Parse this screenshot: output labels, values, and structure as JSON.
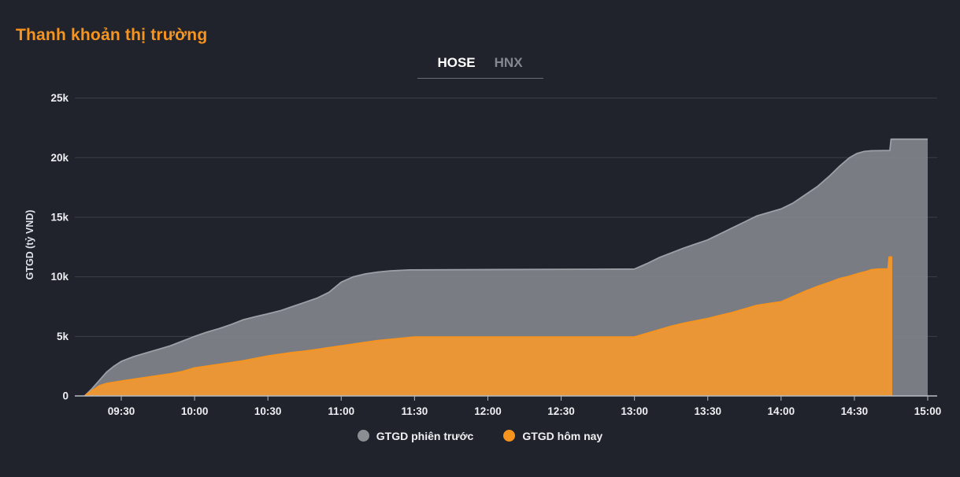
{
  "header": {
    "title": "Thanh khoản thị trường"
  },
  "tabs": [
    {
      "label": "HOSE",
      "active": true
    },
    {
      "label": "HNX",
      "active": false
    }
  ],
  "colors": {
    "accent": "#f7941d",
    "background": "#20232c",
    "previous_session": "#8b8f94",
    "today": "#f7941e"
  },
  "chart_data": {
    "type": "area",
    "title": "Thanh khoản thị trường",
    "xlabel": "",
    "ylabel": "GTGD (tỷ VND)",
    "y_unit": "tỷ VND",
    "x_unit": "minutes from midnight",
    "grid": true,
    "legend_position": "bottom",
    "xlim": [
      553,
      902
    ],
    "ylim": [
      0,
      25000
    ],
    "yticks": [
      {
        "v": 0,
        "label": "0"
      },
      {
        "v": 5000,
        "label": "5k"
      },
      {
        "v": 10000,
        "label": "10k"
      },
      {
        "v": 15000,
        "label": "15k"
      },
      {
        "v": 20000,
        "label": "20k"
      },
      {
        "v": 25000,
        "label": "25k"
      }
    ],
    "xticks": [
      {
        "t": 570,
        "label": "09:30"
      },
      {
        "t": 600,
        "label": "10:00"
      },
      {
        "t": 630,
        "label": "10:30"
      },
      {
        "t": 660,
        "label": "11:00"
      },
      {
        "t": 690,
        "label": "11:30"
      },
      {
        "t": 720,
        "label": "12:00"
      },
      {
        "t": 750,
        "label": "12:30"
      },
      {
        "t": 780,
        "label": "13:00"
      },
      {
        "t": 810,
        "label": "13:30"
      },
      {
        "t": 840,
        "label": "14:00"
      },
      {
        "t": 870,
        "label": "14:30"
      },
      {
        "t": 900,
        "label": "15:00"
      }
    ],
    "series": [
      {
        "name": "GTGD phiên trước",
        "id": "gtgd-phien-truoc",
        "dot_color": "#8b8f94",
        "fill": "rgba(134,137,143,0.88)",
        "stroke": "#9ba0a7",
        "points": [
          [
            555,
            0
          ],
          [
            558,
            600
          ],
          [
            561,
            1300
          ],
          [
            564,
            2000
          ],
          [
            567,
            2500
          ],
          [
            570,
            2900
          ],
          [
            575,
            3300
          ],
          [
            580,
            3600
          ],
          [
            585,
            3900
          ],
          [
            590,
            4200
          ],
          [
            595,
            4600
          ],
          [
            600,
            5000
          ],
          [
            605,
            5350
          ],
          [
            610,
            5650
          ],
          [
            615,
            6000
          ],
          [
            620,
            6400
          ],
          [
            625,
            6650
          ],
          [
            630,
            6900
          ],
          [
            635,
            7150
          ],
          [
            640,
            7500
          ],
          [
            645,
            7850
          ],
          [
            650,
            8200
          ],
          [
            655,
            8700
          ],
          [
            660,
            9550
          ],
          [
            665,
            10000
          ],
          [
            670,
            10250
          ],
          [
            675,
            10400
          ],
          [
            680,
            10500
          ],
          [
            688,
            10580
          ],
          [
            780,
            10650
          ],
          [
            785,
            11100
          ],
          [
            790,
            11600
          ],
          [
            795,
            12000
          ],
          [
            800,
            12400
          ],
          [
            805,
            12750
          ],
          [
            810,
            13100
          ],
          [
            815,
            13600
          ],
          [
            820,
            14100
          ],
          [
            825,
            14600
          ],
          [
            830,
            15100
          ],
          [
            835,
            15400
          ],
          [
            840,
            15700
          ],
          [
            845,
            16200
          ],
          [
            850,
            16900
          ],
          [
            855,
            17600
          ],
          [
            860,
            18500
          ],
          [
            864,
            19300
          ],
          [
            868,
            20000
          ],
          [
            871,
            20350
          ],
          [
            874,
            20520
          ],
          [
            877,
            20580
          ],
          [
            884.5,
            20600
          ],
          [
            885,
            21550
          ],
          [
            900,
            21550
          ]
        ]
      },
      {
        "name": "GTGD hôm nay",
        "id": "gtgd-hom-nay",
        "dot_color": "#f7941e",
        "fill": "rgba(242,152,49,0.93)",
        "stroke": "#f7941e",
        "points": [
          [
            555,
            0
          ],
          [
            558,
            450
          ],
          [
            561,
            850
          ],
          [
            564,
            1050
          ],
          [
            567,
            1150
          ],
          [
            570,
            1250
          ],
          [
            575,
            1400
          ],
          [
            580,
            1550
          ],
          [
            585,
            1700
          ],
          [
            590,
            1850
          ],
          [
            595,
            2050
          ],
          [
            600,
            2350
          ],
          [
            605,
            2500
          ],
          [
            610,
            2650
          ],
          [
            615,
            2800
          ],
          [
            620,
            2950
          ],
          [
            625,
            3150
          ],
          [
            630,
            3350
          ],
          [
            635,
            3500
          ],
          [
            640,
            3650
          ],
          [
            645,
            3750
          ],
          [
            650,
            3900
          ],
          [
            655,
            4050
          ],
          [
            660,
            4200
          ],
          [
            665,
            4350
          ],
          [
            670,
            4500
          ],
          [
            675,
            4650
          ],
          [
            680,
            4750
          ],
          [
            685,
            4850
          ],
          [
            690,
            4950
          ],
          [
            780,
            4950
          ],
          [
            785,
            5250
          ],
          [
            790,
            5550
          ],
          [
            795,
            5850
          ],
          [
            800,
            6100
          ],
          [
            805,
            6300
          ],
          [
            810,
            6500
          ],
          [
            815,
            6750
          ],
          [
            820,
            7000
          ],
          [
            825,
            7300
          ],
          [
            830,
            7600
          ],
          [
            835,
            7750
          ],
          [
            840,
            7900
          ],
          [
            845,
            8350
          ],
          [
            850,
            8800
          ],
          [
            855,
            9200
          ],
          [
            860,
            9550
          ],
          [
            864,
            9850
          ],
          [
            868,
            10050
          ],
          [
            872,
            10300
          ],
          [
            875,
            10450
          ],
          [
            877,
            10600
          ],
          [
            880,
            10650
          ],
          [
            883.8,
            10650
          ],
          [
            884.2,
            11660
          ],
          [
            885.5,
            11660
          ]
        ]
      }
    ]
  }
}
